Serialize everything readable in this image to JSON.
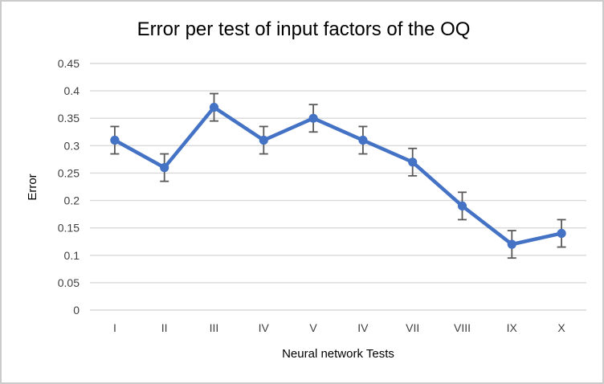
{
  "chart_data": {
    "type": "line",
    "title": "Error per test of input factors of the OQ",
    "xlabel": "Neural network Tests",
    "ylabel": "Error",
    "categories": [
      "I",
      "II",
      "III",
      "IV",
      "V",
      "IV",
      "VII",
      "VIII",
      "IX",
      "X"
    ],
    "values": [
      0.31,
      0.26,
      0.37,
      0.31,
      0.35,
      0.31,
      0.27,
      0.19,
      0.12,
      0.14
    ],
    "error_bars": {
      "type": "fixed",
      "value": 0.025
    },
    "ylim": [
      0,
      0.45
    ],
    "ytick_step": 0.05,
    "grid": true,
    "legend": false,
    "marker": "circle",
    "colors": {
      "series": "#4472C4",
      "error_bar": "#595959",
      "gridline": "#D9D9D9",
      "tick_label": "#404040",
      "axis_title": "#404040",
      "title": "#262626",
      "frame_border": "#CBCBCB",
      "background": "#FFFFFF"
    }
  }
}
